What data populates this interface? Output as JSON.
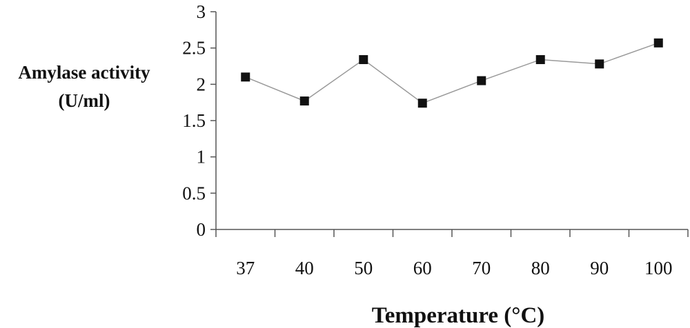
{
  "chart_data": {
    "type": "line",
    "title": "",
    "ylabel_lines": [
      "Amylase activity",
      "(U/ml)"
    ],
    "xlabel": "Temperature (°C)",
    "categories": [
      "37",
      "40",
      "50",
      "60",
      "70",
      "80",
      "90",
      "100"
    ],
    "values": [
      2.1,
      1.77,
      2.34,
      1.74,
      2.05,
      2.34,
      2.28,
      2.57
    ],
    "ylim": [
      0,
      3
    ],
    "yticks": [
      0,
      0.5,
      1,
      1.5,
      2,
      2.5,
      3
    ],
    "ytick_labels": [
      "0",
      "0.5",
      "1",
      "1.5",
      "2",
      "2.5",
      "3"
    ],
    "grid": false,
    "legend": "none",
    "marker": "square",
    "line_color": "#999999",
    "marker_color": "#111111"
  }
}
